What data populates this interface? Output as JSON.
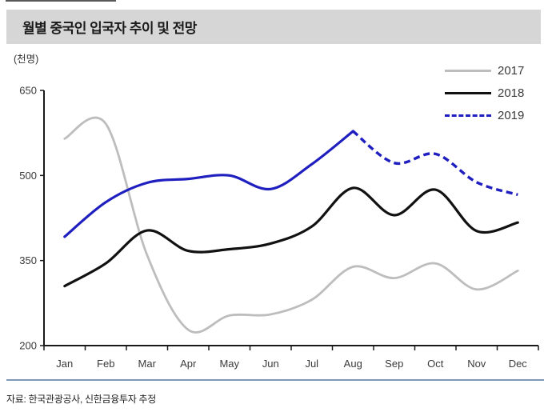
{
  "header": {
    "title": "월별 중국인 입국자 추이 및 전망"
  },
  "chart_data": {
    "type": "line",
    "title": "월별 중국인 입국자 추이 및 전망",
    "unit_label": "(천명)",
    "categories": [
      "Jan",
      "Feb",
      "Mar",
      "Apr",
      "May",
      "Jun",
      "Jul",
      "Aug",
      "Sep",
      "Oct",
      "Nov",
      "Dec"
    ],
    "series": [
      {
        "name": "2017",
        "color": "#bdbdbd",
        "style": "solid",
        "values": [
          565,
          591,
          360,
          228,
          253,
          255,
          281,
          339,
          319,
          345,
          299,
          332
        ]
      },
      {
        "name": "2018",
        "color": "#111111",
        "style": "solid",
        "values": [
          305,
          345,
          403,
          367,
          370,
          380,
          410,
          478,
          430,
          475,
          402,
          417
        ]
      },
      {
        "name": "2019",
        "color": "#1f1fc0",
        "style": "solid-then-dashed",
        "dash_from_index": 7,
        "values": [
          392,
          453,
          487,
          494,
          500,
          476,
          520,
          578,
          522,
          538,
          488,
          466
        ]
      }
    ],
    "y_ticks": [
      650,
      500,
      350,
      200
    ],
    "ylim": [
      200,
      650
    ],
    "grid": false,
    "legend_position": "top-right"
  },
  "footer": {
    "source": "자료: 한국관광공사, 신한금융투자 추정"
  },
  "colors": {
    "title_bar_bg": "#d6d6d6",
    "axis": "#1a1a1a",
    "tick_text": "#3a3a3a",
    "separator": "#8098b8",
    "line_2017": "#bdbdbd",
    "line_2018": "#111111",
    "line_2019": "#1f1fc0"
  }
}
